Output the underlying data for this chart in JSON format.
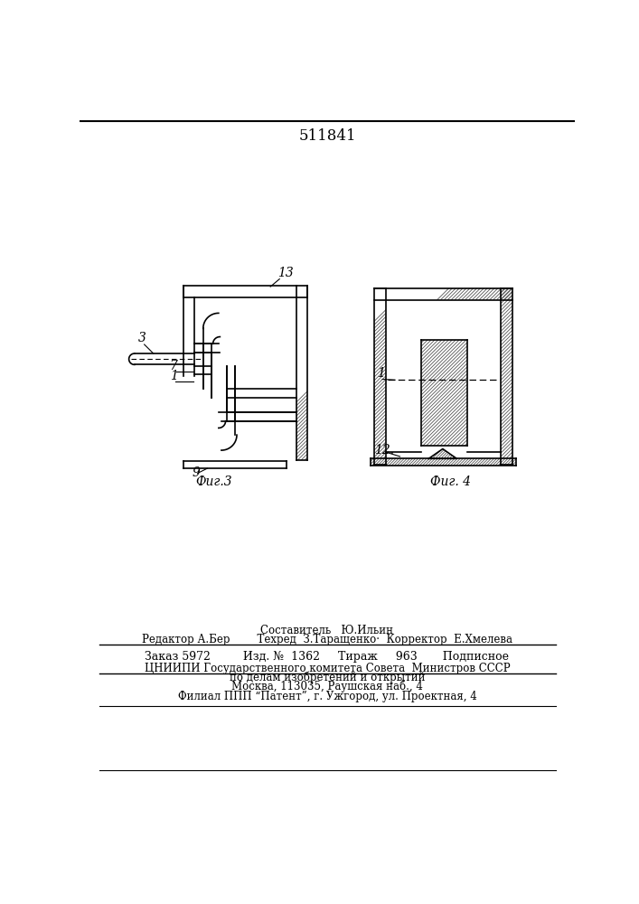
{
  "title": "511841",
  "bg_color": "#ffffff",
  "line_color": "#000000",
  "fig3_label": "Фиг.3",
  "fig4_label": "Фиг. 4",
  "label_13": "13",
  "label_3": "3",
  "label_7": "7",
  "label_1_fig3": "1",
  "label_9": "9",
  "label_1_fig4": "1",
  "label_12": "12.",
  "footer_line1": "Составитель   Ю.Ильин",
  "footer_line2": "Редактор А.Бер        Техред  З.Таращенко·  Корректор  Е.Хмелева",
  "footer_line3": "Заказ 5972         Изд. №  1362     Тираж     963       Подписное",
  "footer_line4": "ЦНИИПИ Государственного комитета Совета  Министров СССР",
  "footer_line5": "по делам изобретений и открытий",
  "footer_line6": "Москва, 113035, Раушская наб., 4",
  "footer_line7": "Филиал ППП “Патент”, г. Ужгород, ул. Проектная, 4"
}
